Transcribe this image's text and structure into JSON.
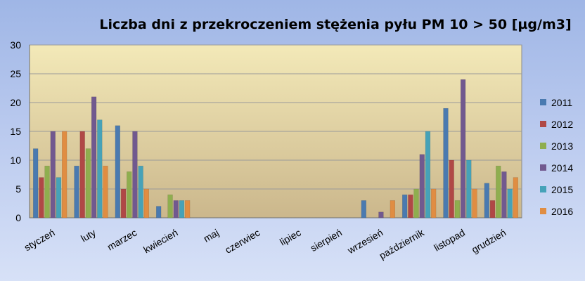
{
  "chart_data": {
    "type": "bar",
    "title": "Liczba dni z przekroczeniem stężenia pyłu PM 10 > 50 [µg/m3]",
    "xlabel": "",
    "ylabel": "",
    "ylim": [
      0,
      30
    ],
    "yticks": [
      0,
      5,
      10,
      15,
      20,
      25,
      30
    ],
    "grid": true,
    "legend_position": "right",
    "categories": [
      "styczeń",
      "luty",
      "marzec",
      "kwiecień",
      "maj",
      "czerwiec",
      "lipiec",
      "sierpień",
      "wrzesień",
      "październik",
      "listopad",
      "grudzień"
    ],
    "series": [
      {
        "name": "2011",
        "color": "#4a7ab0",
        "values": [
          12,
          9,
          16,
          2,
          0,
          0,
          0,
          0,
          3,
          4,
          19,
          6
        ]
      },
      {
        "name": "2012",
        "color": "#b04846",
        "values": [
          7,
          15,
          5,
          0,
          0,
          0,
          0,
          0,
          0,
          4,
          10,
          3
        ]
      },
      {
        "name": "2013",
        "color": "#8fae4f",
        "values": [
          9,
          12,
          8,
          4,
          0,
          0,
          0,
          0,
          0,
          5,
          3,
          9
        ]
      },
      {
        "name": "2014",
        "color": "#71598f",
        "values": [
          15,
          21,
          15,
          3,
          0,
          0,
          0,
          0,
          1,
          11,
          24,
          8
        ]
      },
      {
        "name": "2015",
        "color": "#46a2b8",
        "values": [
          7,
          17,
          9,
          3,
          0,
          0,
          0,
          0,
          0,
          15,
          10,
          5
        ]
      },
      {
        "name": "2016",
        "color": "#e08d42",
        "values": [
          15,
          9,
          5,
          3,
          0,
          0,
          0,
          0,
          3,
          5,
          5,
          7
        ]
      }
    ]
  }
}
